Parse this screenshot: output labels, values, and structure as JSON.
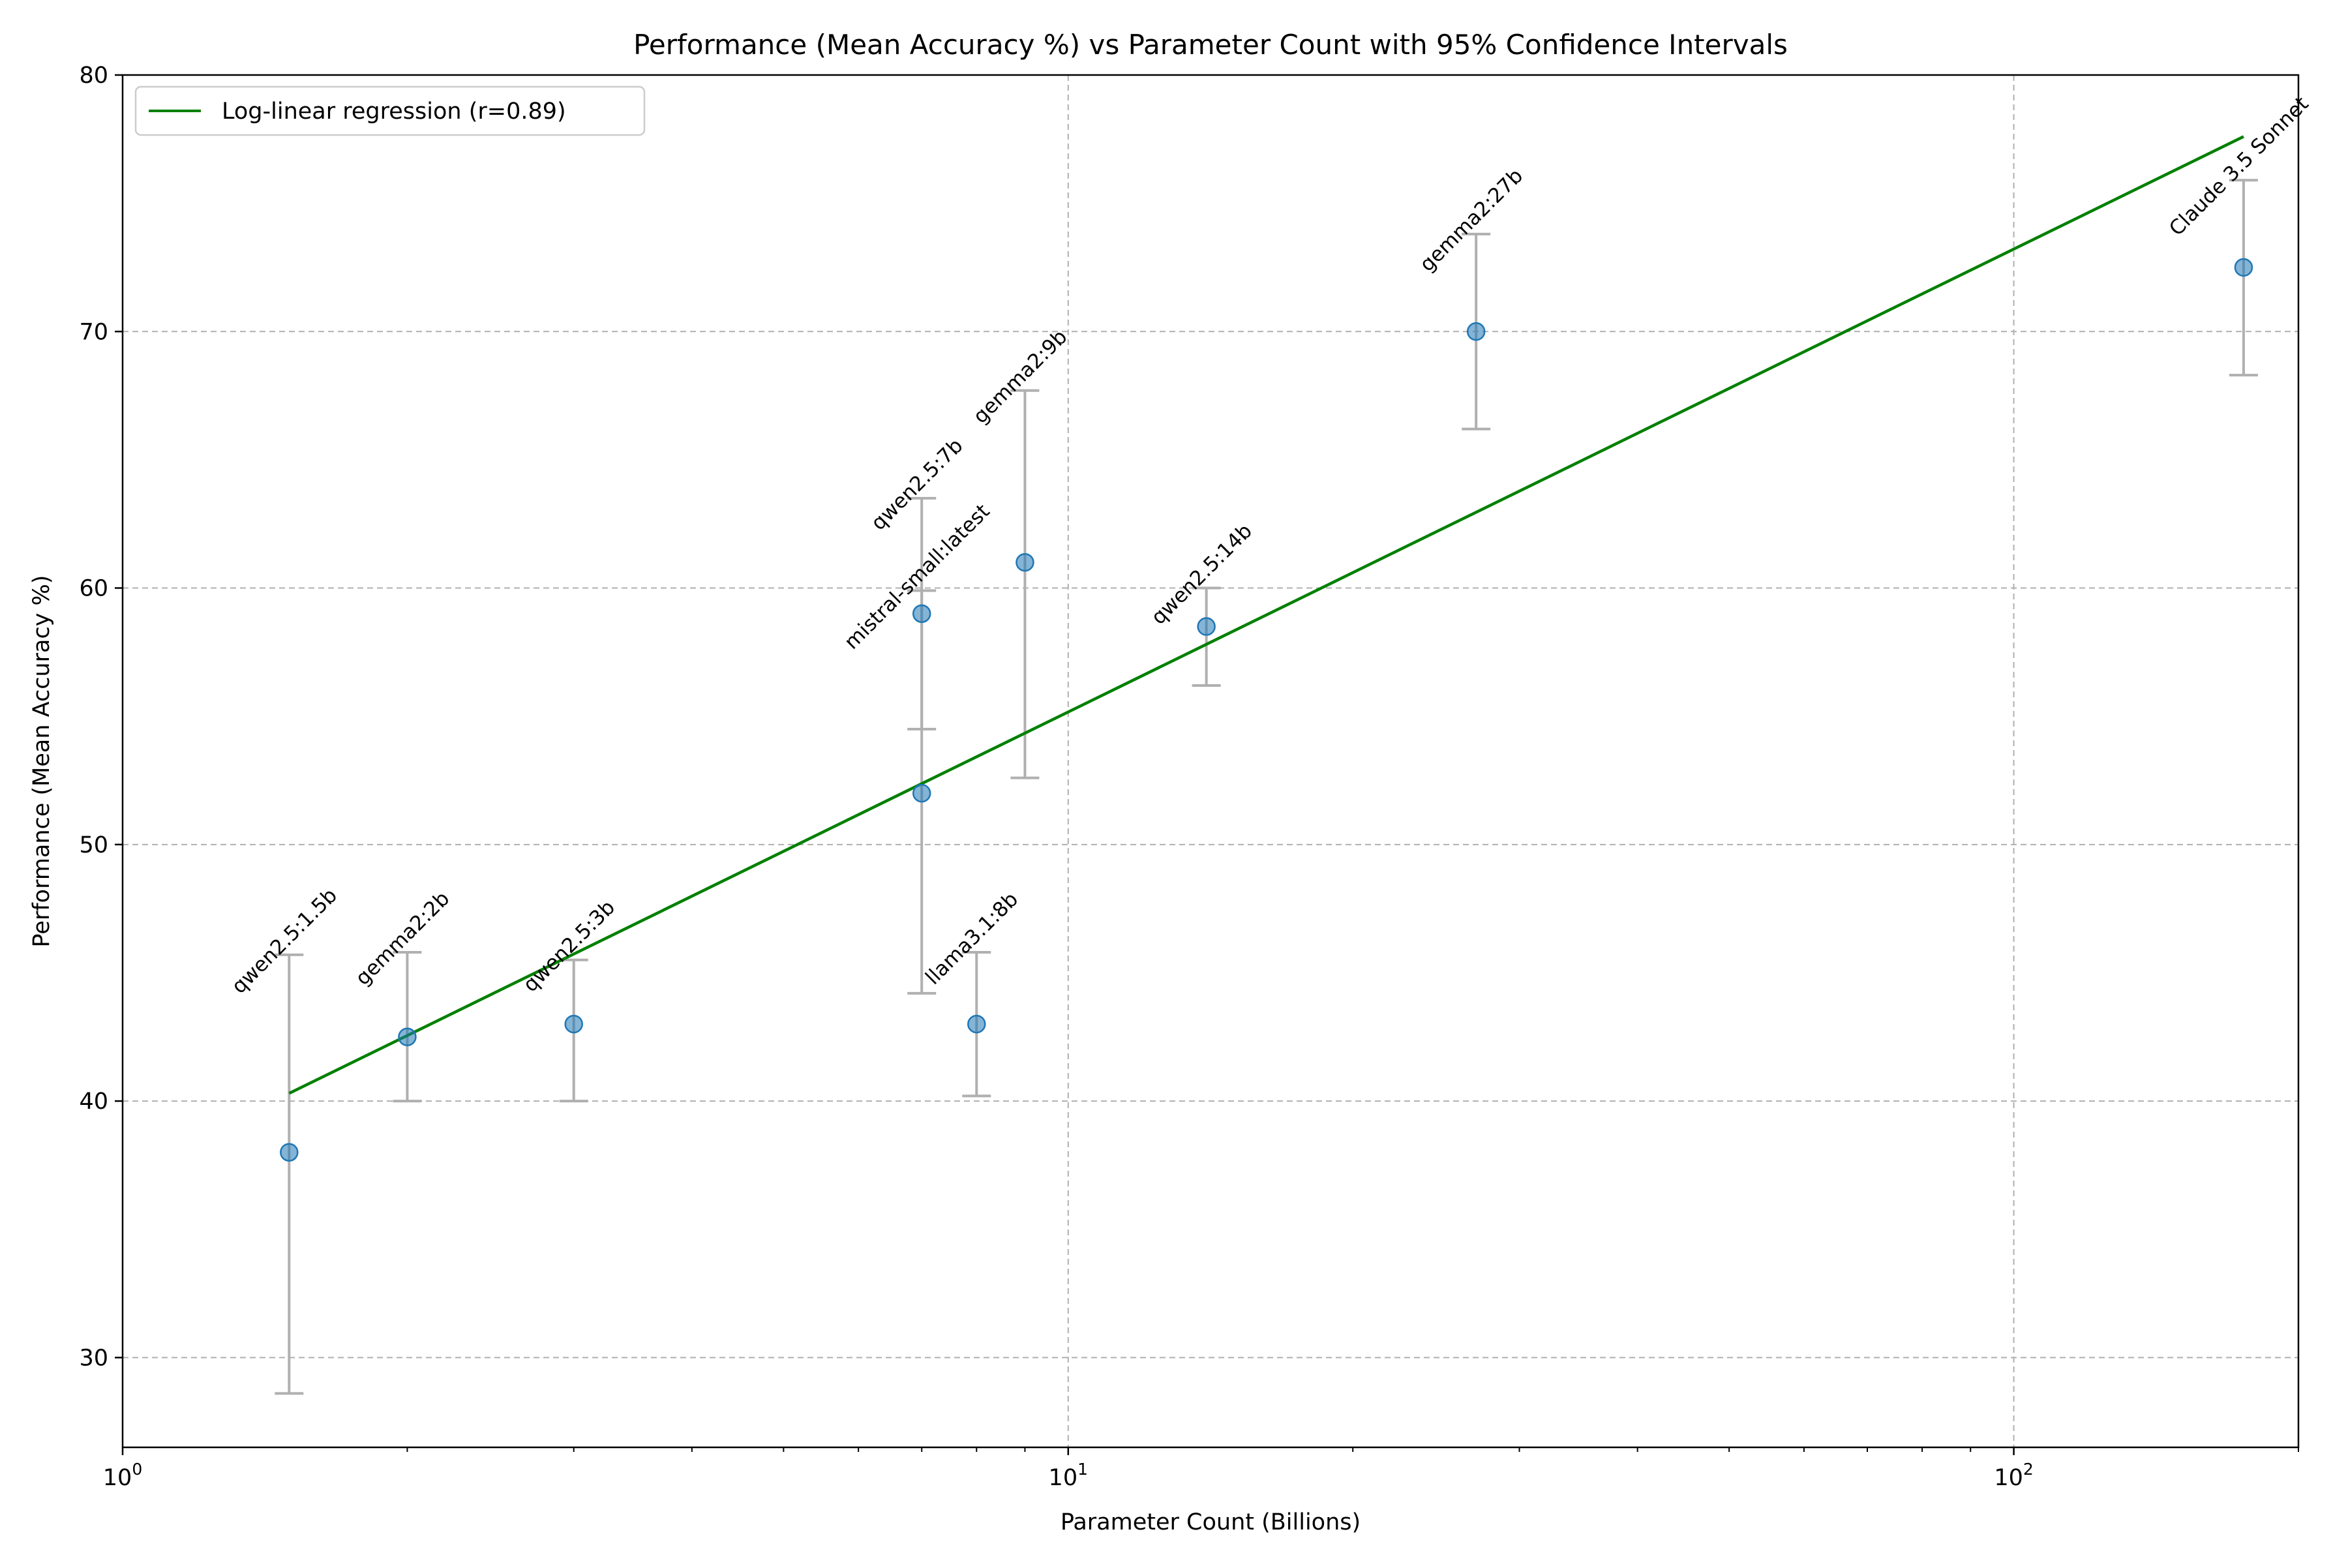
{
  "chart_data": {
    "type": "scatter",
    "title": "Performance (Mean Accuracy %) vs Parameter Count with 95% Confidence Intervals",
    "xlabel": "Parameter Count (Billions)",
    "ylabel": "Performance (Mean Accuracy %)",
    "xscale": "log",
    "xlim": [
      1,
      200
    ],
    "ylim": [
      26.5,
      80
    ],
    "x_ticks": [
      {
        "value": 1,
        "base": "10",
        "exp": "0"
      },
      {
        "value": 10,
        "base": "10",
        "exp": "1"
      },
      {
        "value": 100,
        "base": "10",
        "exp": "2"
      }
    ],
    "y_ticks": [
      30,
      40,
      50,
      60,
      70,
      80
    ],
    "grid": true,
    "legend": {
      "position": "top-left",
      "entries": [
        "Log-linear regression (r=0.89)"
      ]
    },
    "points": [
      {
        "label": "qwen2.5:1.5b",
        "x": 1.5,
        "y": 38.0,
        "ci": [
          28.6,
          45.7
        ]
      },
      {
        "label": "gemma2:2b",
        "x": 2,
        "y": 42.5,
        "ci": [
          40.0,
          45.8
        ]
      },
      {
        "label": "qwen2.5:3b",
        "x": 3,
        "y": 43.0,
        "ci": [
          40.0,
          45.5
        ]
      },
      {
        "label": "qwen2.5:7b",
        "x": 7,
        "y": 59.0,
        "ci": [
          54.5,
          63.5
        ]
      },
      {
        "label": "mistral-small:latest",
        "x": 7,
        "y": 52.0,
        "ci": [
          44.2,
          59.9
        ]
      },
      {
        "label": "llama3.1:8b",
        "x": 8,
        "y": 43.0,
        "ci": [
          40.2,
          45.8
        ]
      },
      {
        "label": "gemma2:9b",
        "x": 9,
        "y": 61.0,
        "ci": [
          52.6,
          67.7
        ]
      },
      {
        "label": "qwen2.5:14b",
        "x": 14,
        "y": 58.5,
        "ci": [
          56.2,
          60.0
        ]
      },
      {
        "label": "gemma2:27b",
        "x": 27,
        "y": 70.0,
        "ci": [
          66.2,
          73.8
        ]
      },
      {
        "label": "Claude 3.5 Sonnet",
        "x": 175,
        "y": 72.5,
        "ci": [
          68.3,
          75.9
        ]
      }
    ],
    "regression": {
      "label": "Log-linear regression (r=0.89)",
      "x": [
        1.5,
        175
      ],
      "y": [
        40.3,
        77.6
      ]
    },
    "colors": {
      "point": "#1f77b4",
      "errorbar": "#b0b0b0",
      "regression": "#008000",
      "grid": "#b0b0b0"
    }
  }
}
